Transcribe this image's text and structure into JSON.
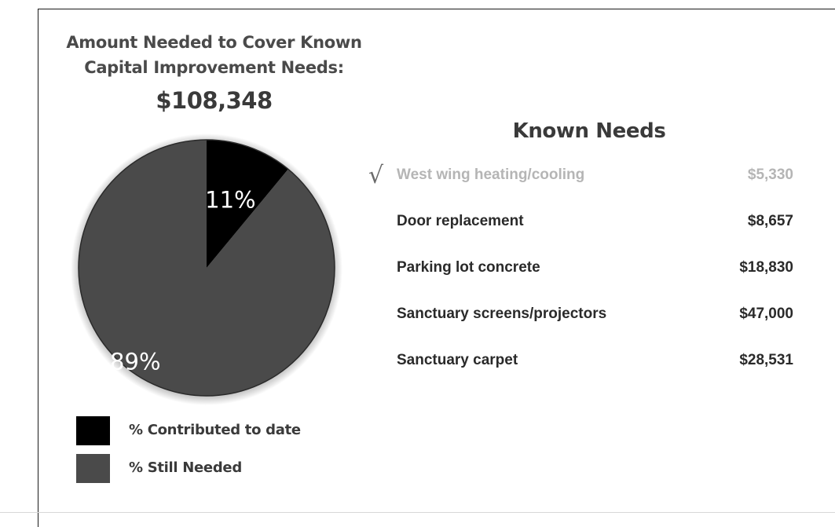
{
  "chart_data": {
    "type": "pie",
    "title": "Amount Needed to Cover Known Capital Improvement Needs:",
    "total": "$108,348",
    "slices": [
      {
        "label": "% Contributed to date",
        "value": 11,
        "display": "11%",
        "color": "#000000"
      },
      {
        "label": "% Still Needed",
        "value": 89,
        "display": "89%",
        "color": "#4a4a4a"
      }
    ],
    "legend_position": "bottom-left"
  },
  "known_needs": {
    "title": "Known Needs",
    "items": [
      {
        "name": "West wing heating/cooling",
        "amount": "$5,330",
        "completed": true,
        "marker_icon": "checkmark-icon",
        "marker": "√"
      },
      {
        "name": "Door replacement",
        "amount": "$8,657",
        "completed": false
      },
      {
        "name": "Parking lot concrete",
        "amount": "$18,830",
        "completed": false
      },
      {
        "name": "Sanctuary screens/projectors",
        "amount": "$47,000",
        "completed": false
      },
      {
        "name": "Sanctuary carpet",
        "amount": "$28,531",
        "completed": false
      }
    ]
  },
  "colors": {
    "completed_text": "#b5b5b5",
    "pending_text": "#2a2a2a",
    "heading_text": "#3a3a3a"
  }
}
